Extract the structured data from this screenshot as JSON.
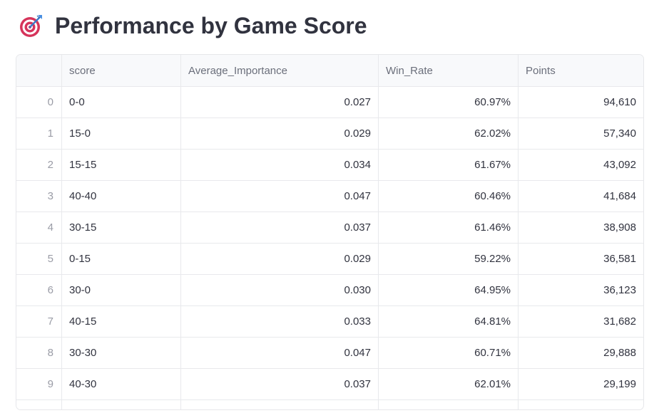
{
  "page": {
    "title": "Performance by Game Score",
    "title_icon": "target-dart-icon"
  },
  "table": {
    "columns": [
      "score",
      "Average_Importance",
      "Win_Rate",
      "Points"
    ],
    "rows": [
      {
        "index": "0",
        "score": "0-0",
        "Average_Importance": "0.027",
        "Win_Rate": "60.97%",
        "Points": "94,610"
      },
      {
        "index": "1",
        "score": "15-0",
        "Average_Importance": "0.029",
        "Win_Rate": "62.02%",
        "Points": "57,340"
      },
      {
        "index": "2",
        "score": "15-15",
        "Average_Importance": "0.034",
        "Win_Rate": "61.67%",
        "Points": "43,092"
      },
      {
        "index": "3",
        "score": "40-40",
        "Average_Importance": "0.047",
        "Win_Rate": "60.46%",
        "Points": "41,684"
      },
      {
        "index": "4",
        "score": "30-15",
        "Average_Importance": "0.037",
        "Win_Rate": "61.46%",
        "Points": "38,908"
      },
      {
        "index": "5",
        "score": "0-15",
        "Average_Importance": "0.029",
        "Win_Rate": "59.22%",
        "Points": "36,581"
      },
      {
        "index": "6",
        "score": "30-0",
        "Average_Importance": "0.030",
        "Win_Rate": "64.95%",
        "Points": "36,123"
      },
      {
        "index": "7",
        "score": "40-15",
        "Average_Importance": "0.033",
        "Win_Rate": "64.81%",
        "Points": "31,682"
      },
      {
        "index": "8",
        "score": "30-30",
        "Average_Importance": "0.047",
        "Win_Rate": "60.71%",
        "Points": "29,888"
      },
      {
        "index": "9",
        "score": "40-30",
        "Average_Importance": "0.037",
        "Win_Rate": "62.01%",
        "Points": "29,199"
      }
    ]
  },
  "colors": {
    "text": "#31333f",
    "header_bg": "#f8f9fb",
    "border": "#e8e9ec",
    "index_text": "#9a9ca6"
  }
}
